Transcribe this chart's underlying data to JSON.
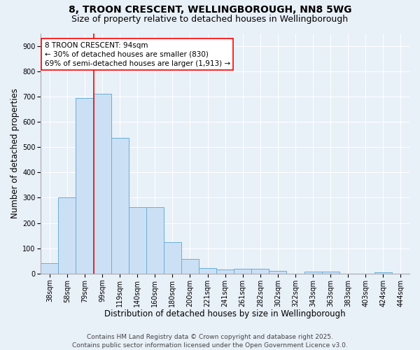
{
  "title_line1": "8, TROON CRESCENT, WELLINGBOROUGH, NN8 5WG",
  "title_line2": "Size of property relative to detached houses in Wellingborough",
  "xlabel": "Distribution of detached houses by size in Wellingborough",
  "ylabel": "Number of detached properties",
  "categories": [
    "38sqm",
    "58sqm",
    "79sqm",
    "99sqm",
    "119sqm",
    "140sqm",
    "160sqm",
    "180sqm",
    "200sqm",
    "221sqm",
    "241sqm",
    "261sqm",
    "282sqm",
    "302sqm",
    "322sqm",
    "343sqm",
    "363sqm",
    "383sqm",
    "403sqm",
    "424sqm",
    "444sqm"
  ],
  "values": [
    42,
    300,
    695,
    710,
    535,
    263,
    263,
    125,
    57,
    22,
    17,
    18,
    18,
    10,
    0,
    8,
    8,
    0,
    0,
    5,
    0
  ],
  "bar_color": "#cce0f5",
  "bar_edge_color": "#6aaed6",
  "vline_color": "red",
  "vline_x": 3.0,
  "annotation_text": "8 TROON CRESCENT: 94sqm\n← 30% of detached houses are smaller (830)\n69% of semi-detached houses are larger (1,913) →",
  "annotation_box_color": "white",
  "annotation_box_edge": "red",
  "ylim": [
    0,
    950
  ],
  "yticks": [
    0,
    100,
    200,
    300,
    400,
    500,
    600,
    700,
    800,
    900
  ],
  "footer_text": "Contains HM Land Registry data © Crown copyright and database right 2025.\nContains public sector information licensed under the Open Government Licence v3.0.",
  "bg_color": "#e8f0f8",
  "title_fontsize": 10,
  "subtitle_fontsize": 9,
  "axis_label_fontsize": 8.5,
  "tick_fontsize": 7,
  "footer_fontsize": 6.5,
  "annotation_fontsize": 7.5
}
